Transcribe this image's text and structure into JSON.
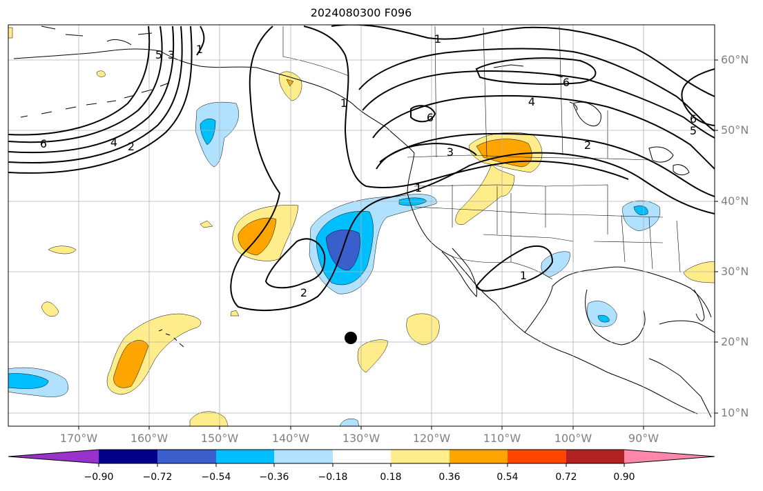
{
  "title": "2024080300 F096",
  "lat_labels": [
    "60°N",
    "50°N",
    "40°N",
    "30°N",
    "20°N",
    "10°N"
  ],
  "lon_labels": [
    "170°W",
    "160°W",
    "150°W",
    "140°W",
    "130°W",
    "120°W",
    "110°W",
    "100°W",
    "90°W"
  ],
  "contour_labels": [
    "6",
    "4",
    "2",
    "1",
    "5",
    "3",
    "1",
    "6",
    "4",
    "2",
    "3",
    "1",
    "2",
    "1",
    "6",
    "5",
    "6",
    "1"
  ],
  "colorbar": {
    "tick_labels": [
      "−0.90",
      "−0.72",
      "−0.54",
      "−0.36",
      "−0.18",
      "0.18",
      "0.36",
      "0.54",
      "0.72",
      "0.90"
    ],
    "colors": [
      "#9932cc",
      "#00008b",
      "#3a5fcd",
      "#00bfff",
      "#b0e2ff",
      "#ffffff",
      "#ffec8b",
      "#ffa500",
      "#ff4500",
      "#b22222",
      "#ff88aa"
    ]
  },
  "marker": "black-dot"
}
